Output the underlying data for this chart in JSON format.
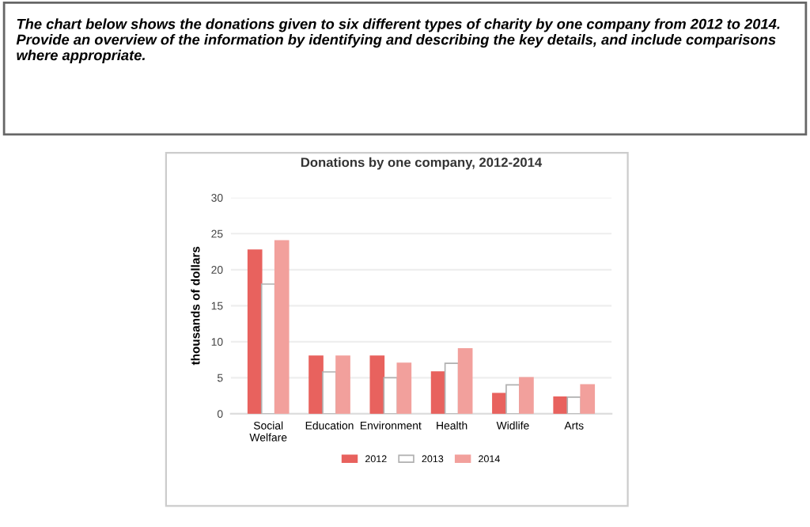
{
  "chart_data": {
    "type": "bar",
    "title": "Donations by one company, 2012-2014",
    "annotations": [
      "The chart below shows the donations given to six different types of charity by one company from 2012 to 2014. Provide an overview of the information by identifying and describing the key details, and include comparisons where appropriate."
    ],
    "ylabel": "thousands of dollars",
    "categories": [
      "Social\nWelfare",
      "Education",
      "Environment",
      "Health",
      "Widlife",
      "Arts"
    ],
    "series": [
      {
        "name": "2012",
        "color": "#e8625e",
        "values": [
          22.7,
          8,
          8,
          5.8,
          2.8,
          2.3
        ]
      },
      {
        "name": "2013",
        "color": "#ffffff",
        "values": [
          18,
          5.8,
          5,
          7,
          4,
          2.3
        ]
      },
      {
        "name": "2014",
        "color": "#f2a09c",
        "values": [
          24,
          8,
          7,
          9,
          5,
          4
        ]
      }
    ],
    "ylim": [
      0,
      30
    ],
    "yticks": [
      0,
      5,
      10,
      15,
      20,
      25,
      30
    ],
    "grid": "y",
    "legend": "bottom"
  }
}
